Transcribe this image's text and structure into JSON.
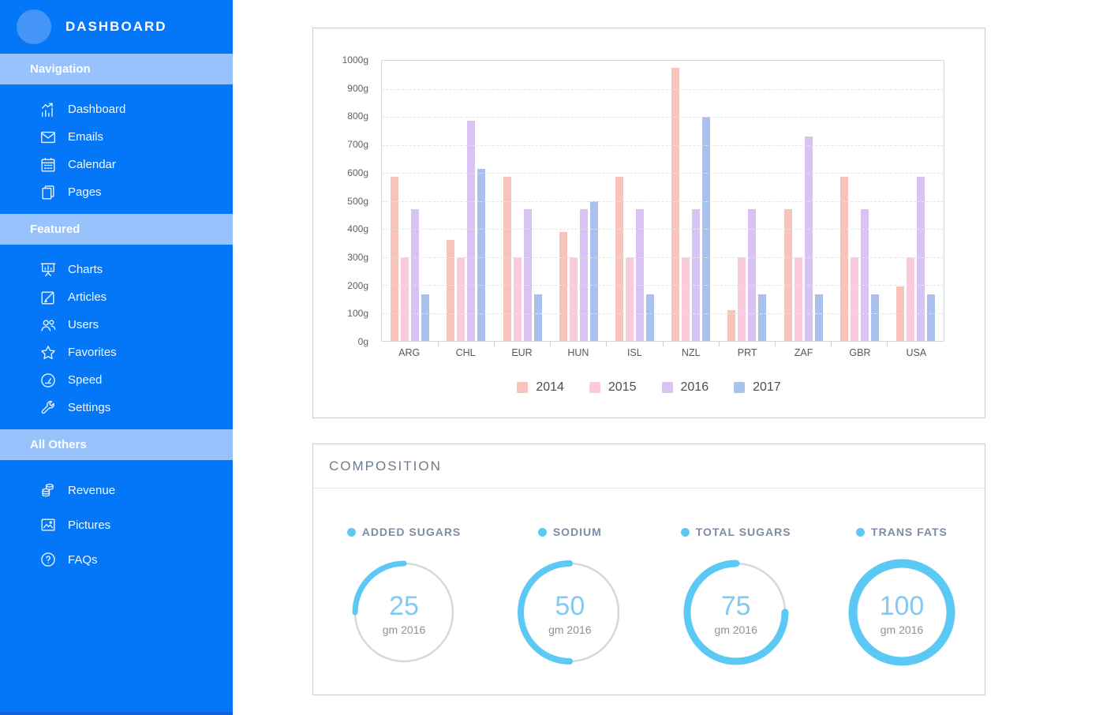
{
  "sidebar": {
    "title": "DASHBOARD",
    "sections": [
      {
        "header": "Navigation",
        "items": [
          {
            "label": "Dashboard",
            "icon": "analytics"
          },
          {
            "label": "Emails",
            "icon": "emails"
          },
          {
            "label": "Calendar",
            "icon": "calendar"
          },
          {
            "label": "Pages",
            "icon": "pages"
          }
        ]
      },
      {
        "header": "Featured",
        "items": [
          {
            "label": "Charts",
            "icon": "charts"
          },
          {
            "label": "Articles",
            "icon": "articles"
          },
          {
            "label": "Users",
            "icon": "users"
          },
          {
            "label": "Favorites",
            "icon": "favorites"
          },
          {
            "label": "Speed",
            "icon": "speed"
          },
          {
            "label": "Settings",
            "icon": "settings"
          }
        ]
      },
      {
        "header": "All Others",
        "items": [
          {
            "label": "Revenue",
            "icon": "revenue"
          },
          {
            "label": "Pictures",
            "icon": "pictures"
          },
          {
            "label": "FAQs",
            "icon": "faqs"
          }
        ]
      }
    ]
  },
  "chart_data": {
    "type": "bar",
    "categories": [
      "ARG",
      "CHL",
      "EUR",
      "HUN",
      "ISL",
      "NZL",
      "PRT",
      "ZAF",
      "GBR",
      "USA"
    ],
    "series": [
      {
        "name": "2014",
        "color": "#f8c3bb",
        "values": [
          585,
          360,
          585,
          390,
          585,
          975,
          110,
          470,
          585,
          195
        ]
      },
      {
        "name": "2015",
        "color": "#fbcade",
        "values": [
          300,
          300,
          300,
          300,
          300,
          300,
          300,
          300,
          300,
          300
        ]
      },
      {
        "name": "2016",
        "color": "#d9c3f5",
        "values": [
          470,
          785,
          470,
          470,
          470,
          470,
          470,
          730,
          470,
          585
        ]
      },
      {
        "name": "2017",
        "color": "#a9c1ec",
        "values": [
          165,
          615,
          165,
          500,
          165,
          800,
          165,
          165,
          165,
          165
        ]
      }
    ],
    "y_ticks": [
      "1000g",
      "900g",
      "800g",
      "700g",
      "600g",
      "500g",
      "400g",
      "300g",
      "200g",
      "100g",
      "0g"
    ],
    "ylim": [
      0,
      1000
    ],
    "unit": "g",
    "grid": "horizontal-dashed",
    "legend_position": "bottom"
  },
  "composition": {
    "title": "COMPOSITION",
    "gauges": [
      {
        "label": "ADDED SUGARS",
        "value": "25",
        "unit": "gm 2016",
        "percent": 25
      },
      {
        "label": "SODIUM",
        "value": "50",
        "unit": "gm 2016",
        "percent": 50
      },
      {
        "label": "TOTAL SUGARS",
        "value": "75",
        "unit": "gm 2016",
        "percent": 75
      },
      {
        "label": "TRANS FATS",
        "value": "100",
        "unit": "gm 2016",
        "percent": 100
      }
    ]
  },
  "colors": {
    "sidebar_bg": "#0377f8",
    "sidebar_band": "#97c2fb",
    "accent_blue": "#5bc9f4",
    "gauge_value_text": "#84c9f0",
    "gauge_ring_gray": "#d7d7d7",
    "bar_2014": "#f8c3bb",
    "bar_2015": "#fbcade",
    "bar_2016": "#d9c3f5",
    "bar_2017": "#a9c1ec"
  }
}
